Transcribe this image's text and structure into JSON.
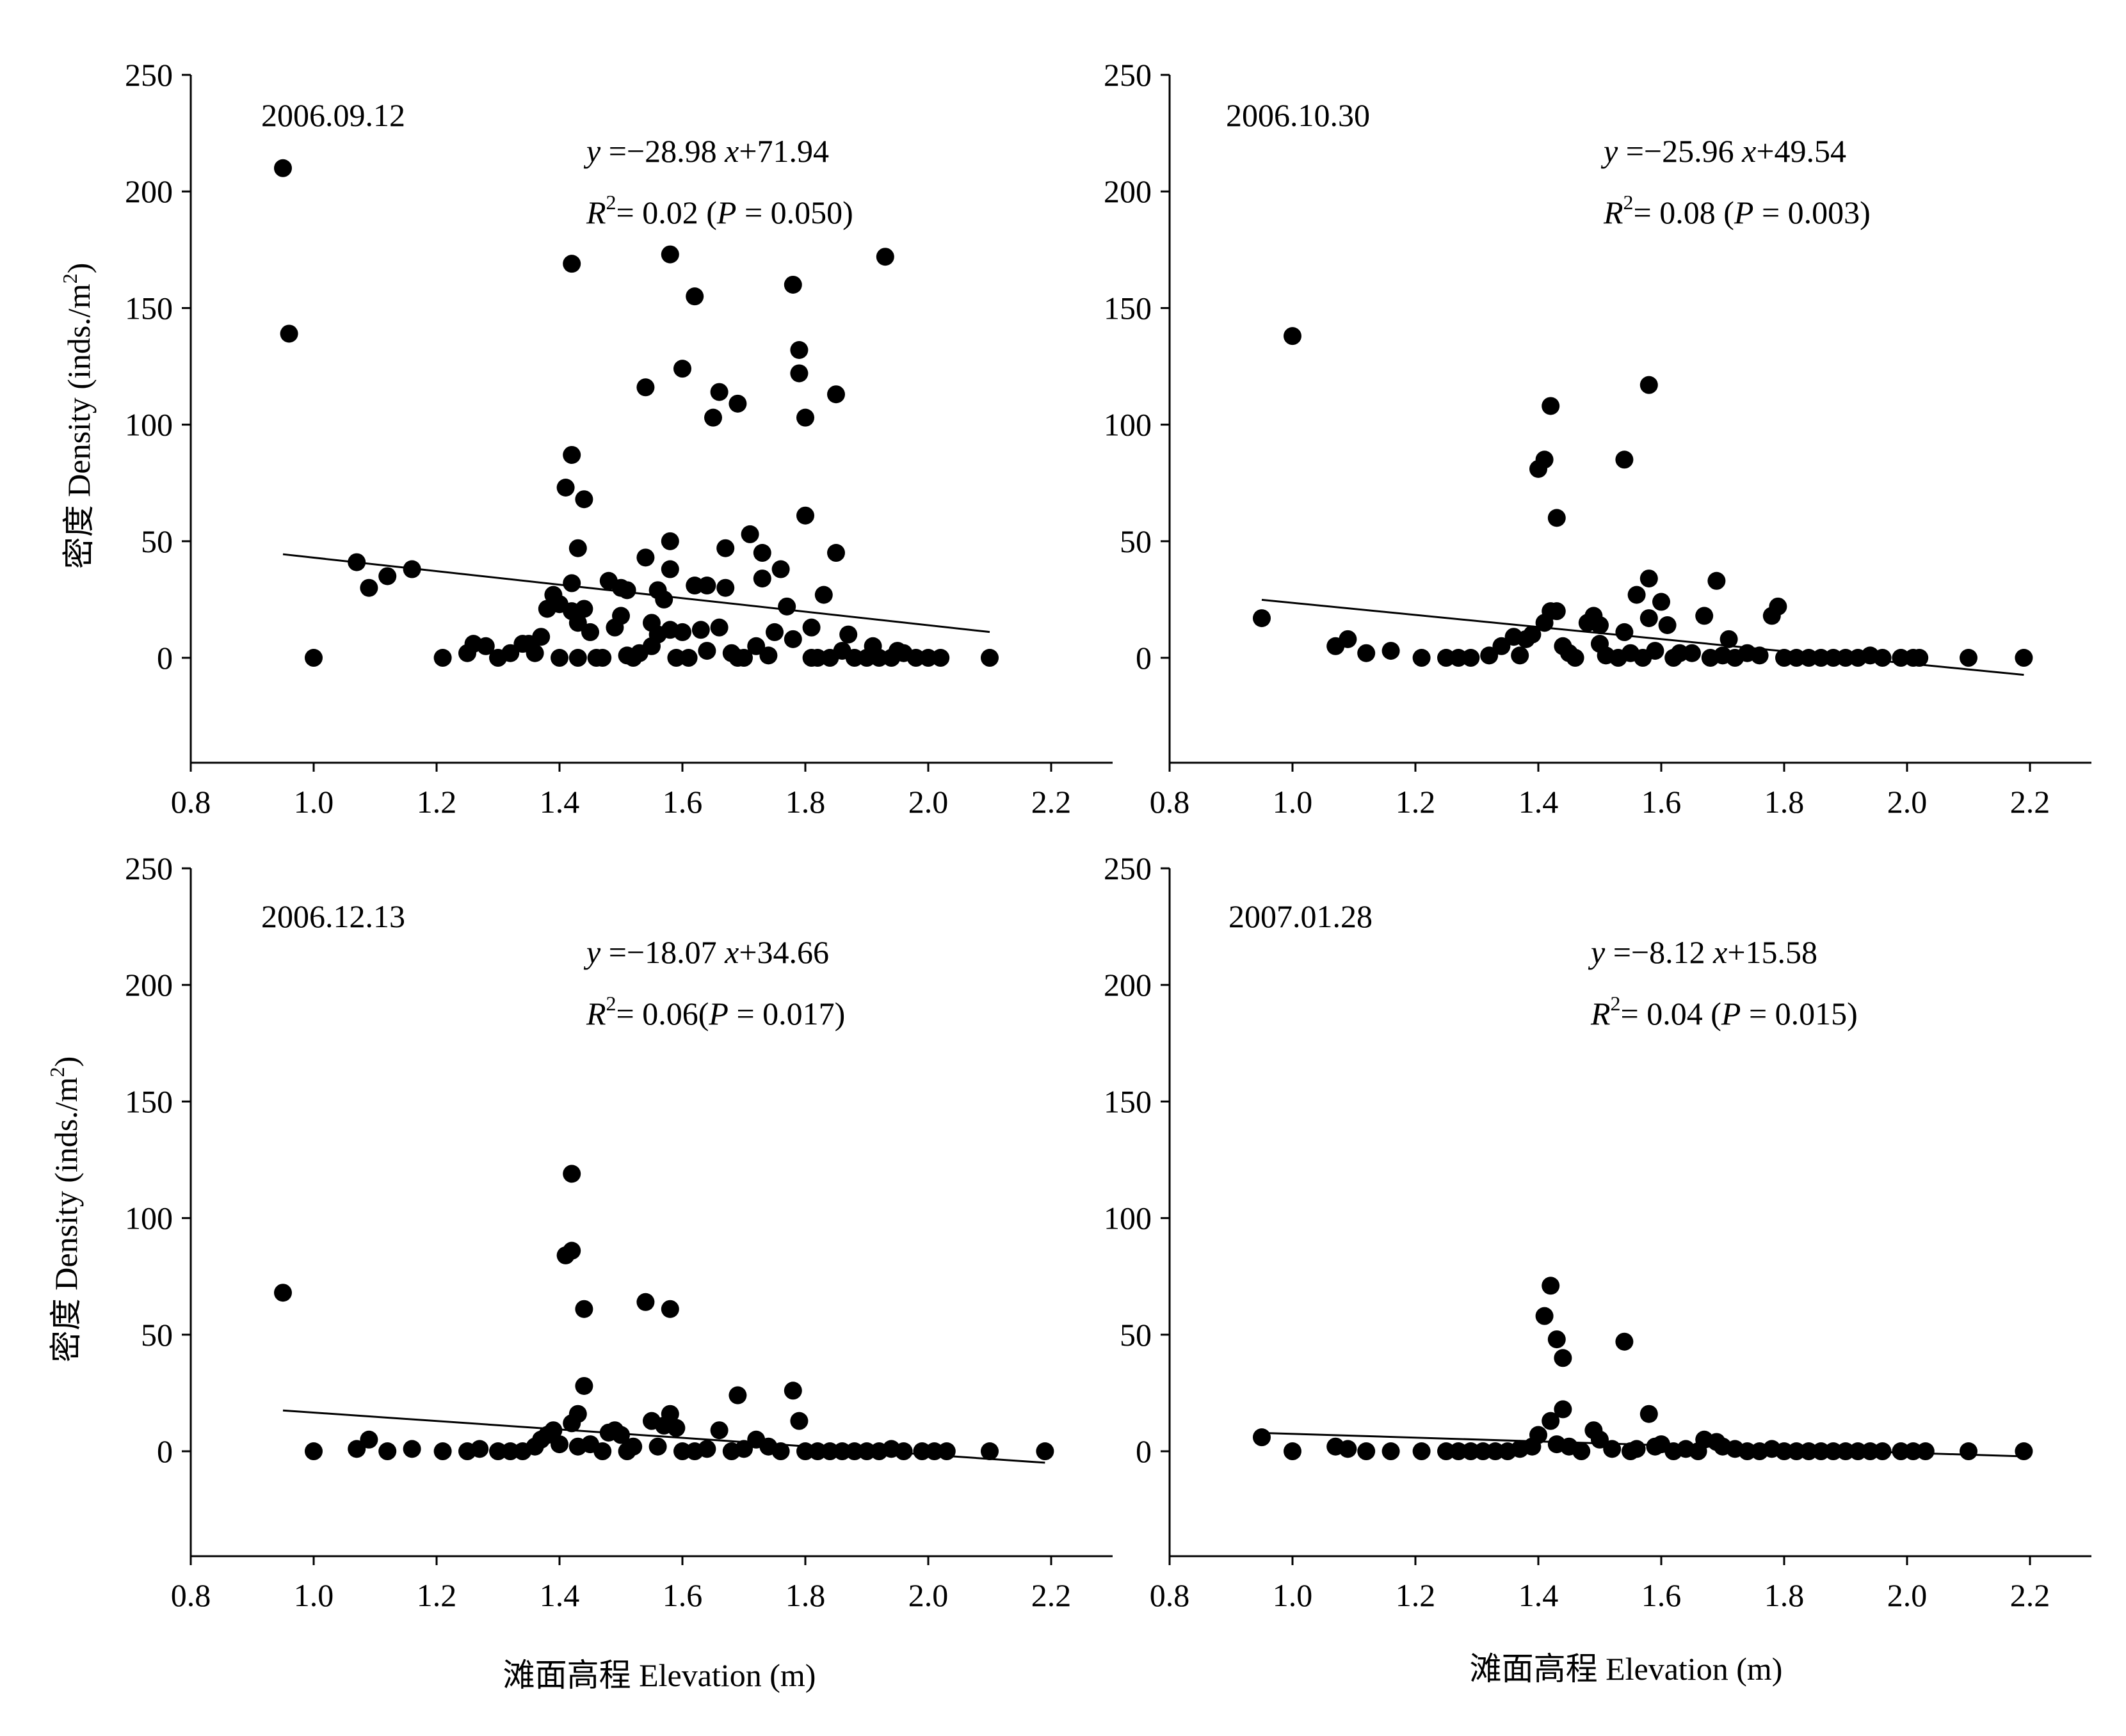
{
  "figure": {
    "panels": [
      {
        "date": "2006.09.12",
        "equation": {
          "y": "y",
          "eq": " =−28.98 ",
          "x": "x",
          "rest": "+71.94"
        },
        "r2": {
          "R": "R",
          "sup": "2",
          "value": "= 0.02 (",
          "P": "P",
          "pval": " = 0.050)"
        }
      },
      {
        "date": "2006.10.30",
        "equation": {
          "y": "y",
          "eq": " =−25.96 ",
          "x": "x",
          "rest": "+49.54"
        },
        "r2": {
          "R": "R",
          "sup": "2",
          "value": "= 0.08 (",
          "P": "P",
          "pval": " = 0.003)"
        }
      },
      {
        "date": "2006.12.13",
        "equation": {
          "y": "y",
          "eq": " =−18.07 ",
          "x": "x",
          "rest": "+34.66"
        },
        "r2": {
          "R": "R",
          "sup": "2",
          "value": "= 0.06(",
          "P": "P",
          "pval": " = 0.017)"
        }
      },
      {
        "date": "2007.01.28",
        "equation": {
          "y": "y",
          "eq": " =−8.12 ",
          "x": "x",
          "rest": "+15.58"
        },
        "r2": {
          "R": "R",
          "sup": "2",
          "value": "= 0.04 (",
          "P": "P",
          "pval": " = 0.015)"
        }
      }
    ],
    "ylabel": {
      "cn": "密度",
      "en": " Density (inds./m",
      "sup": "2",
      "end": ")"
    },
    "xlabel": "滩面高程  Elevation (m)"
  },
  "chart_data": [
    {
      "type": "scatter",
      "title": "2006.09.12",
      "xlabel": "滩面高程  Elevation (m)",
      "ylabel": "密度 Density (inds./m2)",
      "xlim": [
        0.8,
        2.3
      ],
      "ylim": [
        -45,
        250
      ],
      "xticks": [
        "0.8",
        "1.0",
        "1.2",
        "1.4",
        "1.6",
        "1.8",
        "2.0",
        "2.2"
      ],
      "yticks": [
        "0",
        "50",
        "100",
        "150",
        "200",
        "250"
      ],
      "fit": {
        "slope": -28.98,
        "intercept": 71.94,
        "x_range": [
          0.95,
          2.1
        ]
      },
      "points": [
        [
          0.95,
          210
        ],
        [
          0.96,
          139
        ],
        [
          1.0,
          0
        ],
        [
          1.07,
          41
        ],
        [
          1.09,
          30
        ],
        [
          1.12,
          35
        ],
        [
          1.16,
          38
        ],
        [
          1.21,
          0
        ],
        [
          1.25,
          2
        ],
        [
          1.26,
          6
        ],
        [
          1.28,
          5
        ],
        [
          1.3,
          0
        ],
        [
          1.32,
          2
        ],
        [
          1.34,
          6
        ],
        [
          1.35,
          6
        ],
        [
          1.36,
          2
        ],
        [
          1.37,
          9
        ],
        [
          1.38,
          21
        ],
        [
          1.39,
          27
        ],
        [
          1.4,
          0
        ],
        [
          1.4,
          23
        ],
        [
          1.41,
          73
        ],
        [
          1.42,
          87
        ],
        [
          1.42,
          20
        ],
        [
          1.42,
          32
        ],
        [
          1.42,
          169
        ],
        [
          1.43,
          47
        ],
        [
          1.43,
          15
        ],
        [
          1.43,
          0
        ],
        [
          1.44,
          68
        ],
        [
          1.44,
          21
        ],
        [
          1.45,
          11
        ],
        [
          1.46,
          0
        ],
        [
          1.47,
          0
        ],
        [
          1.48,
          33
        ],
        [
          1.49,
          13
        ],
        [
          1.5,
          30
        ],
        [
          1.5,
          18
        ],
        [
          1.51,
          1
        ],
        [
          1.51,
          29
        ],
        [
          1.52,
          0
        ],
        [
          1.53,
          2
        ],
        [
          1.54,
          43
        ],
        [
          1.54,
          116
        ],
        [
          1.55,
          15
        ],
        [
          1.55,
          5
        ],
        [
          1.56,
          29
        ],
        [
          1.56,
          10
        ],
        [
          1.57,
          25
        ],
        [
          1.58,
          173
        ],
        [
          1.58,
          50
        ],
        [
          1.58,
          38
        ],
        [
          1.58,
          12
        ],
        [
          1.59,
          0
        ],
        [
          1.6,
          124
        ],
        [
          1.6,
          11
        ],
        [
          1.61,
          0
        ],
        [
          1.62,
          31
        ],
        [
          1.62,
          155
        ],
        [
          1.63,
          12
        ],
        [
          1.64,
          31
        ],
        [
          1.64,
          3
        ],
        [
          1.65,
          103
        ],
        [
          1.66,
          114
        ],
        [
          1.66,
          13
        ],
        [
          1.67,
          47
        ],
        [
          1.67,
          30
        ],
        [
          1.68,
          2
        ],
        [
          1.69,
          109
        ],
        [
          1.69,
          0
        ],
        [
          1.7,
          0
        ],
        [
          1.71,
          53
        ],
        [
          1.72,
          5
        ],
        [
          1.73,
          34
        ],
        [
          1.73,
          45
        ],
        [
          1.74,
          1
        ],
        [
          1.75,
          11
        ],
        [
          1.76,
          38
        ],
        [
          1.77,
          22
        ],
        [
          1.78,
          160
        ],
        [
          1.78,
          8
        ],
        [
          1.79,
          122
        ],
        [
          1.79,
          132
        ],
        [
          1.8,
          103
        ],
        [
          1.8,
          61
        ],
        [
          1.81,
          13
        ],
        [
          1.81,
          0
        ],
        [
          1.82,
          0
        ],
        [
          1.83,
          27
        ],
        [
          1.84,
          0
        ],
        [
          1.85,
          113
        ],
        [
          1.85,
          45
        ],
        [
          1.86,
          3
        ],
        [
          1.87,
          10
        ],
        [
          1.88,
          0
        ],
        [
          1.9,
          0
        ],
        [
          1.91,
          5
        ],
        [
          1.92,
          0
        ],
        [
          1.93,
          172
        ],
        [
          1.94,
          0
        ],
        [
          1.95,
          3
        ],
        [
          1.96,
          2
        ],
        [
          1.98,
          0
        ],
        [
          2.0,
          0
        ],
        [
          2.02,
          0
        ],
        [
          2.1,
          0
        ]
      ]
    },
    {
      "type": "scatter",
      "title": "2006.10.30",
      "xlabel": "滩面高程  Elevation (m)",
      "ylabel": "",
      "xlim": [
        0.8,
        2.3
      ],
      "ylim": [
        -45,
        250
      ],
      "xticks": [
        "0.8",
        "1.0",
        "1.2",
        "1.4",
        "1.6",
        "1.8",
        "2.0",
        "2.2"
      ],
      "yticks": [
        "0",
        "50",
        "100",
        "150",
        "200",
        "250"
      ],
      "fit": {
        "slope": -25.96,
        "intercept": 49.54,
        "x_range": [
          0.95,
          2.19
        ]
      },
      "points": [
        [
          0.95,
          17
        ],
        [
          1.0,
          138
        ],
        [
          1.07,
          5
        ],
        [
          1.09,
          8
        ],
        [
          1.12,
          2
        ],
        [
          1.16,
          3
        ],
        [
          1.21,
          0
        ],
        [
          1.25,
          0
        ],
        [
          1.27,
          0
        ],
        [
          1.29,
          0
        ],
        [
          1.32,
          1
        ],
        [
          1.34,
          5
        ],
        [
          1.36,
          9
        ],
        [
          1.37,
          1
        ],
        [
          1.38,
          8
        ],
        [
          1.39,
          10
        ],
        [
          1.4,
          81
        ],
        [
          1.41,
          85
        ],
        [
          1.41,
          15
        ],
        [
          1.42,
          108
        ],
        [
          1.42,
          20
        ],
        [
          1.43,
          60
        ],
        [
          1.43,
          20
        ],
        [
          1.44,
          5
        ],
        [
          1.45,
          2
        ],
        [
          1.46,
          0
        ],
        [
          1.48,
          15
        ],
        [
          1.49,
          18
        ],
        [
          1.5,
          6
        ],
        [
          1.5,
          14
        ],
        [
          1.51,
          1
        ],
        [
          1.53,
          0
        ],
        [
          1.54,
          85
        ],
        [
          1.54,
          11
        ],
        [
          1.55,
          2
        ],
        [
          1.56,
          27
        ],
        [
          1.57,
          0
        ],
        [
          1.58,
          117
        ],
        [
          1.58,
          34
        ],
        [
          1.58,
          17
        ],
        [
          1.59,
          3
        ],
        [
          1.6,
          24
        ],
        [
          1.61,
          14
        ],
        [
          1.62,
          0
        ],
        [
          1.63,
          2
        ],
        [
          1.65,
          2
        ],
        [
          1.67,
          18
        ],
        [
          1.68,
          0
        ],
        [
          1.69,
          33
        ],
        [
          1.7,
          1
        ],
        [
          1.71,
          8
        ],
        [
          1.72,
          0
        ],
        [
          1.74,
          2
        ],
        [
          1.76,
          1
        ],
        [
          1.78,
          18
        ],
        [
          1.79,
          22
        ],
        [
          1.8,
          0
        ],
        [
          1.82,
          0
        ],
        [
          1.84,
          0
        ],
        [
          1.86,
          0
        ],
        [
          1.88,
          0
        ],
        [
          1.9,
          0
        ],
        [
          1.92,
          0
        ],
        [
          1.94,
          1
        ],
        [
          1.96,
          0
        ],
        [
          1.99,
          0
        ],
        [
          2.01,
          0
        ],
        [
          2.02,
          0
        ],
        [
          2.1,
          0
        ],
        [
          2.19,
          0
        ]
      ]
    },
    {
      "type": "scatter",
      "title": "2006.12.13",
      "xlabel": "滩面高程  Elevation (m)",
      "ylabel": "密度 Density (inds./m2)",
      "xlim": [
        0.8,
        2.3
      ],
      "ylim": [
        -45,
        250
      ],
      "xticks": [
        "0.8",
        "1.0",
        "1.2",
        "1.4",
        "1.6",
        "1.8",
        "2.0",
        "2.2"
      ],
      "yticks": [
        "0",
        "50",
        "100",
        "150",
        "200",
        "250"
      ],
      "fit": {
        "slope": -18.07,
        "intercept": 34.66,
        "x_range": [
          0.95,
          2.19
        ]
      },
      "points": [
        [
          0.95,
          68
        ],
        [
          1.0,
          0
        ],
        [
          1.07,
          1
        ],
        [
          1.09,
          5
        ],
        [
          1.12,
          0
        ],
        [
          1.16,
          1
        ],
        [
          1.21,
          0
        ],
        [
          1.25,
          0
        ],
        [
          1.27,
          1
        ],
        [
          1.3,
          0
        ],
        [
          1.32,
          0
        ],
        [
          1.34,
          0
        ],
        [
          1.36,
          2
        ],
        [
          1.37,
          5
        ],
        [
          1.38,
          7
        ],
        [
          1.39,
          9
        ],
        [
          1.4,
          3
        ],
        [
          1.41,
          84
        ],
        [
          1.42,
          86
        ],
        [
          1.42,
          119
        ],
        [
          1.42,
          12
        ],
        [
          1.43,
          16
        ],
        [
          1.43,
          2
        ],
        [
          1.44,
          61
        ],
        [
          1.44,
          28
        ],
        [
          1.45,
          3
        ],
        [
          1.47,
          0
        ],
        [
          1.48,
          8
        ],
        [
          1.49,
          9
        ],
        [
          1.5,
          7
        ],
        [
          1.51,
          0
        ],
        [
          1.52,
          2
        ],
        [
          1.54,
          64
        ],
        [
          1.55,
          13
        ],
        [
          1.56,
          2
        ],
        [
          1.57,
          11
        ],
        [
          1.58,
          61
        ],
        [
          1.58,
          16
        ],
        [
          1.59,
          10
        ],
        [
          1.6,
          0
        ],
        [
          1.62,
          0
        ],
        [
          1.64,
          1
        ],
        [
          1.66,
          9
        ],
        [
          1.68,
          0
        ],
        [
          1.69,
          24
        ],
        [
          1.7,
          1
        ],
        [
          1.72,
          5
        ],
        [
          1.74,
          2
        ],
        [
          1.76,
          0
        ],
        [
          1.78,
          26
        ],
        [
          1.79,
          13
        ],
        [
          1.8,
          0
        ],
        [
          1.82,
          0
        ],
        [
          1.84,
          0
        ],
        [
          1.86,
          0
        ],
        [
          1.88,
          0
        ],
        [
          1.9,
          0
        ],
        [
          1.92,
          0
        ],
        [
          1.94,
          1
        ],
        [
          1.96,
          0
        ],
        [
          1.99,
          0
        ],
        [
          2.01,
          0
        ],
        [
          2.03,
          0
        ],
        [
          2.1,
          0
        ],
        [
          2.19,
          0
        ]
      ]
    },
    {
      "type": "scatter",
      "title": "2007.01.28",
      "xlabel": "滩面高程  Elevation (m)",
      "ylabel": "",
      "xlim": [
        0.8,
        2.3
      ],
      "ylim": [
        -45,
        250
      ],
      "xticks": [
        "0.8",
        "1.0",
        "1.2",
        "1.4",
        "1.6",
        "1.8",
        "2.0",
        "2.2"
      ],
      "yticks": [
        "0",
        "50",
        "100",
        "150",
        "200",
        "250"
      ],
      "fit": {
        "slope": -8.12,
        "intercept": 15.58,
        "x_range": [
          0.95,
          2.19
        ]
      },
      "points": [
        [
          0.95,
          6
        ],
        [
          1.0,
          0
        ],
        [
          1.07,
          2
        ],
        [
          1.09,
          1
        ],
        [
          1.12,
          0
        ],
        [
          1.16,
          0
        ],
        [
          1.21,
          0
        ],
        [
          1.25,
          0
        ],
        [
          1.27,
          0
        ],
        [
          1.29,
          0
        ],
        [
          1.31,
          0
        ],
        [
          1.33,
          0
        ],
        [
          1.35,
          0
        ],
        [
          1.37,
          1
        ],
        [
          1.39,
          2
        ],
        [
          1.4,
          7
        ],
        [
          1.41,
          58
        ],
        [
          1.42,
          71
        ],
        [
          1.42,
          13
        ],
        [
          1.43,
          48
        ],
        [
          1.43,
          3
        ],
        [
          1.44,
          40
        ],
        [
          1.44,
          18
        ],
        [
          1.45,
          2
        ],
        [
          1.47,
          0
        ],
        [
          1.49,
          9
        ],
        [
          1.5,
          5
        ],
        [
          1.52,
          1
        ],
        [
          1.54,
          47
        ],
        [
          1.55,
          0
        ],
        [
          1.56,
          1
        ],
        [
          1.58,
          16
        ],
        [
          1.59,
          2
        ],
        [
          1.6,
          3
        ],
        [
          1.62,
          0
        ],
        [
          1.64,
          1
        ],
        [
          1.66,
          0
        ],
        [
          1.67,
          5
        ],
        [
          1.69,
          4
        ],
        [
          1.7,
          2
        ],
        [
          1.72,
          1
        ],
        [
          1.74,
          0
        ],
        [
          1.76,
          0
        ],
        [
          1.78,
          1
        ],
        [
          1.8,
          0
        ],
        [
          1.82,
          0
        ],
        [
          1.84,
          0
        ],
        [
          1.86,
          0
        ],
        [
          1.88,
          0
        ],
        [
          1.9,
          0
        ],
        [
          1.92,
          0
        ],
        [
          1.94,
          0
        ],
        [
          1.96,
          0
        ],
        [
          1.99,
          0
        ],
        [
          2.01,
          0
        ],
        [
          2.03,
          0
        ],
        [
          2.1,
          0
        ],
        [
          2.19,
          0
        ]
      ]
    }
  ]
}
